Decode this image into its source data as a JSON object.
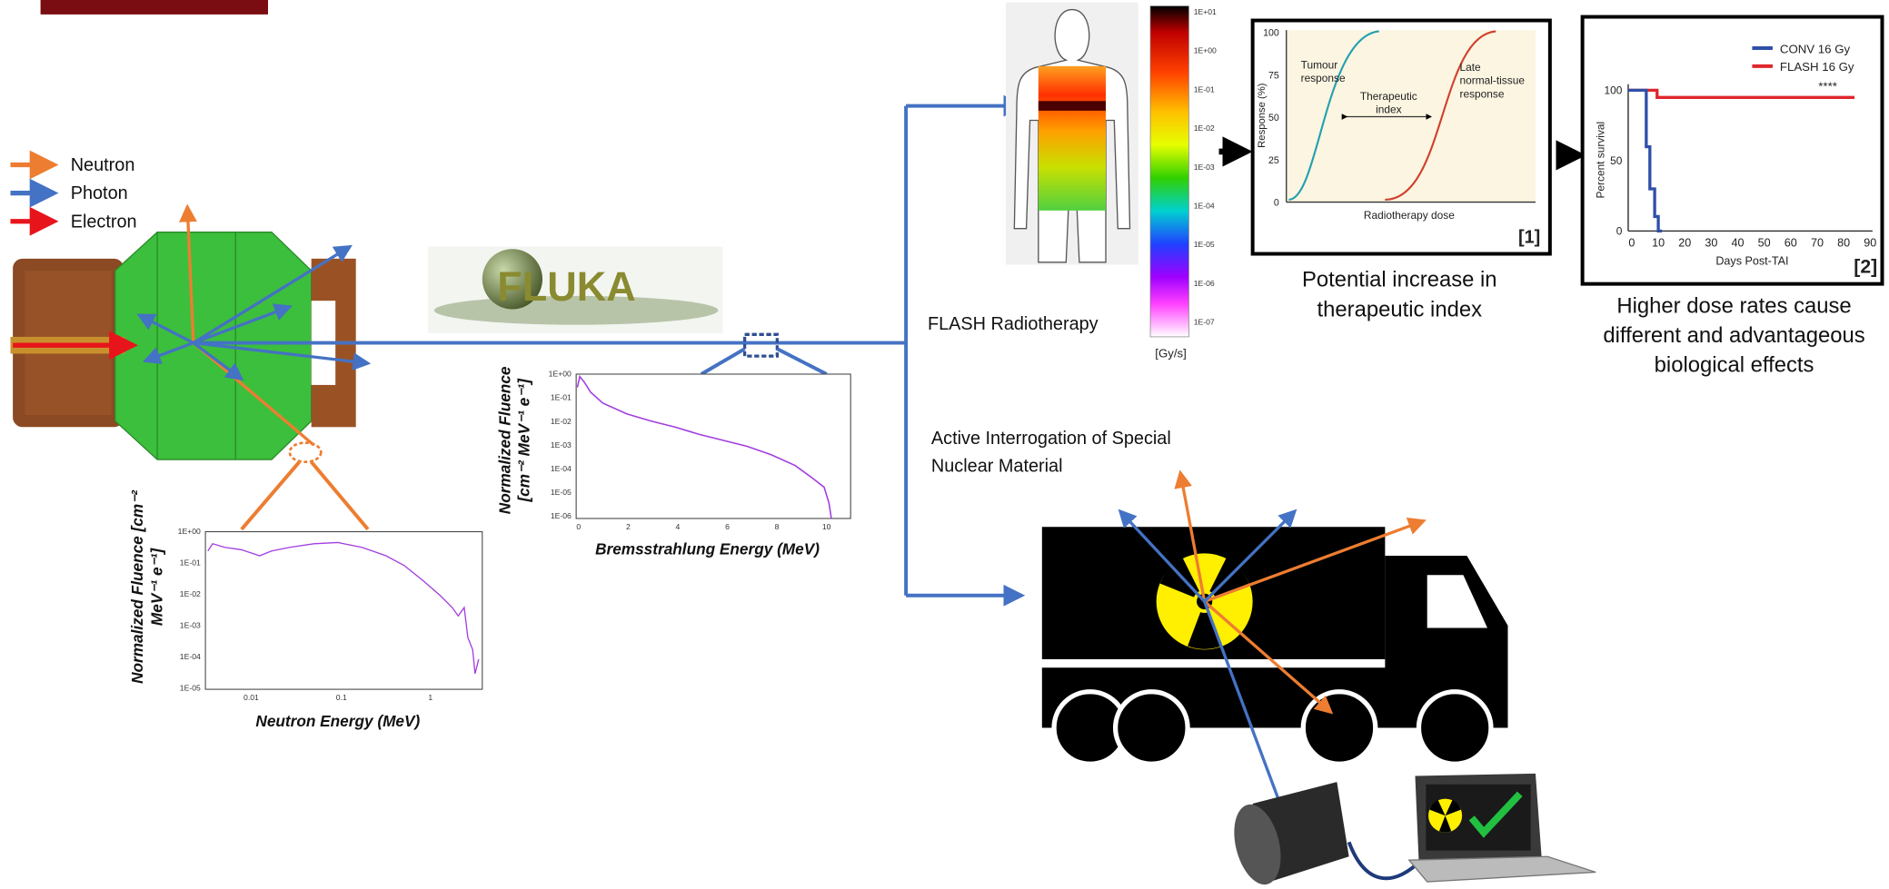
{
  "legend": [
    {
      "label": "Neutron",
      "color": "#ed7d31"
    },
    {
      "label": "Photon",
      "color": "#4472c4"
    },
    {
      "label": "Electron",
      "color": "#e8141b"
    }
  ],
  "software": "FLUKA",
  "neutron_plot": {
    "ylabel": [
      "Normalized  Fluence [cm⁻²",
      "MeV⁻¹ e⁻¹]"
    ],
    "xlabel": "Neutron Energy (MeV)",
    "yticks": [
      "1E+00",
      "1E-01",
      "1E-02",
      "1E-03",
      "1E-04",
      "1E-05"
    ],
    "xticks": [
      "0.01",
      "0.1",
      "1"
    ]
  },
  "brems_plot": {
    "ylabel": [
      "Normalized  Fluence",
      "[cm⁻² MeV⁻¹ e⁻¹]"
    ],
    "xlabel": "Bremsstrahlung Energy (MeV)",
    "yticks": [
      "1E+00",
      "1E-01",
      "1E-02",
      "1E-03",
      "1E-04",
      "1E-05",
      "1E-06"
    ],
    "xticks": [
      "0",
      "2",
      "4",
      "6",
      "8",
      "10"
    ]
  },
  "flash": {
    "title": "FLASH Radiotherapy",
    "colorbar_ticks": [
      "1E+01",
      "1E+00",
      "1E-01",
      "1E-02",
      "1E-03",
      "1E-04",
      "1E-05",
      "1E-06",
      "1E-07"
    ],
    "unit": "[Gy/s]"
  },
  "response_plot": {
    "ylabel": "Response (%)",
    "yticks": [
      "100",
      "75",
      "50",
      "25",
      "0"
    ],
    "xlabel": "Radiotherapy dose",
    "tumour": [
      "Tumour",
      "response"
    ],
    "index": [
      "Therapeutic",
      "index"
    ],
    "late": [
      "Late",
      "normal-tissue",
      "response"
    ],
    "ref": "[1]",
    "caption": [
      "Potential increase in",
      "therapeutic index"
    ]
  },
  "survival_plot": {
    "series": [
      {
        "name": "CONV 16 Gy",
        "color": "#2f4fa8"
      },
      {
        "name": "FLASH 16 Gy",
        "color": "#e0262c"
      }
    ],
    "ylabel": "Percent survival",
    "yticks": [
      "100",
      "50",
      "0"
    ],
    "xlabel": "Days Post-TAI",
    "xticks": [
      "0",
      "10",
      "20",
      "30",
      "40",
      "50",
      "60",
      "70",
      "80",
      "90"
    ],
    "significance": "****",
    "ref": "[2]",
    "caption": [
      "Higher dose rates cause",
      "different and advantageous",
      "biological effects"
    ]
  },
  "interrogation": {
    "title": [
      "Active Interrogation of Special",
      "Nuclear Material"
    ]
  }
}
